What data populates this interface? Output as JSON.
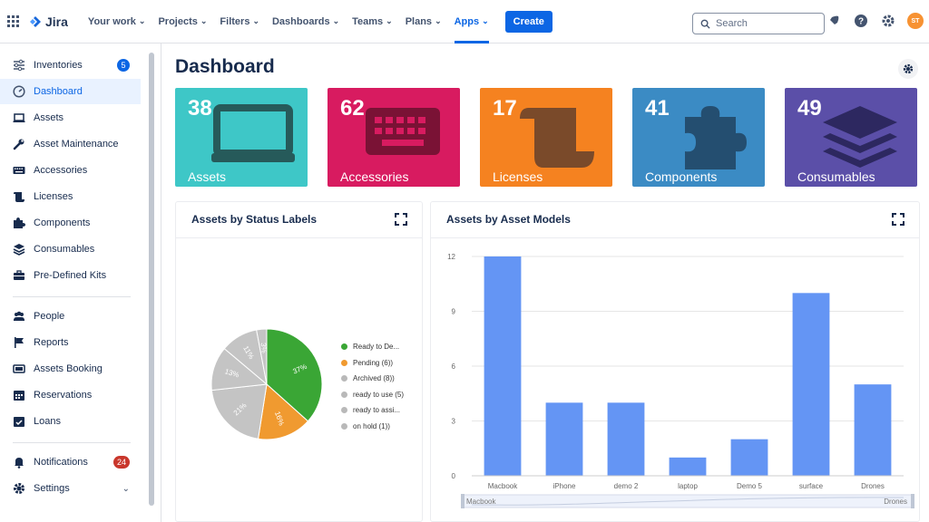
{
  "topnav": {
    "logo": "Jira",
    "items": [
      {
        "label": "Your work"
      },
      {
        "label": "Projects"
      },
      {
        "label": "Filters"
      },
      {
        "label": "Dashboards"
      },
      {
        "label": "Teams"
      },
      {
        "label": "Plans"
      },
      {
        "label": "Apps"
      }
    ],
    "create_label": "Create",
    "search_placeholder": "Search",
    "avatar_initials": "ST"
  },
  "sidebar": {
    "items": [
      {
        "label": "Inventories",
        "icon": "sliders-icon",
        "badge": "5"
      },
      {
        "label": "Dashboard",
        "icon": "gauge-icon"
      },
      {
        "label": "Assets",
        "icon": "laptop-icon"
      },
      {
        "label": "Asset Maintenance",
        "icon": "wrench-icon"
      },
      {
        "label": "Accessories",
        "icon": "keyboard-icon"
      },
      {
        "label": "Licenses",
        "icon": "scroll-icon"
      },
      {
        "label": "Components",
        "icon": "puzzle-icon"
      },
      {
        "label": "Consumables",
        "icon": "layers-icon"
      },
      {
        "label": "Pre-Defined Kits",
        "icon": "toolbox-icon"
      },
      {
        "label": "People",
        "icon": "users-icon"
      },
      {
        "label": "Reports",
        "icon": "flag-icon"
      },
      {
        "label": "Assets Booking",
        "icon": "booking-icon"
      },
      {
        "label": "Reservations",
        "icon": "calendar-icon"
      },
      {
        "label": "Loans",
        "icon": "calendar-check-icon"
      },
      {
        "label": "Notifications",
        "icon": "bell-icon",
        "badge": "24"
      },
      {
        "label": "Settings",
        "icon": "gear-icon"
      }
    ]
  },
  "page": {
    "title": "Dashboard"
  },
  "tiles": [
    {
      "count": "38",
      "label": "Assets",
      "color": "#3ec7c7",
      "icon": "laptop-icon"
    },
    {
      "count": "62",
      "label": "Accessories",
      "color": "#d81b60",
      "icon": "keyboard-icon"
    },
    {
      "count": "17",
      "label": "Licenses",
      "color": "#f58220",
      "icon": "scroll-icon"
    },
    {
      "count": "41",
      "label": "Components",
      "color": "#3b8bc4",
      "icon": "puzzle-icon"
    },
    {
      "count": "49",
      "label": "Consumables",
      "color": "#5b4fa8",
      "icon": "layers-icon"
    }
  ],
  "status_card": {
    "title": "Assets by Status Labels",
    "legend": [
      {
        "label": "Ready to De...",
        "color": "#3aa635"
      },
      {
        "label": "Pending (6))",
        "color": "#f09a30"
      },
      {
        "label": "Archived (8))",
        "color": "#b9b9b9"
      },
      {
        "label": "ready to use (5)",
        "color": "#b9b9b9"
      },
      {
        "label": "ready to assi...",
        "color": "#b9b9b9"
      },
      {
        "label": "on hold (1))",
        "color": "#b9b9b9"
      }
    ]
  },
  "models_card": {
    "title": "Assets by Asset Models",
    "slider_left": "Macbook",
    "slider_right": "Drones"
  },
  "chart_data": [
    {
      "type": "pie",
      "title": "Assets by Status Labels",
      "labels": [
        "Ready to De...",
        "Pending (6))",
        "Archived (8))",
        "ready to use (5)",
        "ready to assi...",
        "on hold (1))"
      ],
      "values": [
        37,
        16,
        21,
        13,
        11,
        3
      ],
      "slice_labels": [
        "37%",
        "16%",
        "21%",
        "13%",
        "11%",
        "3%"
      ],
      "colors": [
        "#3aa635",
        "#f09a30",
        "#c4c4c4",
        "#c4c4c4",
        "#c4c4c4",
        "#c4c4c4"
      ],
      "legend_position": "right"
    },
    {
      "type": "bar",
      "title": "Assets by Asset Models",
      "categories": [
        "Macbook",
        "iPhone",
        "demo 2",
        "laptop",
        "Demo 5",
        "surface",
        "Drones"
      ],
      "values": [
        12,
        4,
        4,
        1,
        2,
        10,
        5
      ],
      "yticks": [
        "0",
        "3",
        "6",
        "9",
        "12"
      ],
      "ylim": [
        0,
        12
      ],
      "color": "#6495f4",
      "grid": true
    }
  ]
}
